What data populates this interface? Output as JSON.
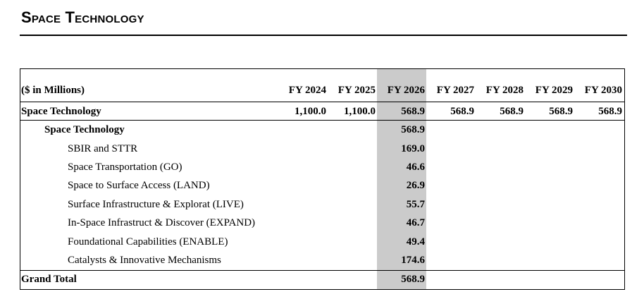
{
  "title": "Space Technology",
  "table": {
    "units_label": "($ in Millions)",
    "columns": [
      "FY 2024",
      "FY 2025",
      "FY 2026",
      "FY 2027",
      "FY 2028",
      "FY 2029",
      "FY 2030"
    ],
    "rows": [
      {
        "label": "Space Technology",
        "level": 0,
        "values": [
          "1,100.0",
          "1,100.0",
          "568.9",
          "568.9",
          "568.9",
          "568.9",
          "568.9"
        ]
      },
      {
        "label": "Space Technology",
        "level": 1,
        "values": [
          "",
          "",
          "568.9",
          "",
          "",
          "",
          ""
        ]
      },
      {
        "label": "SBIR and STTR",
        "level": 2,
        "values": [
          "",
          "",
          "169.0",
          "",
          "",
          "",
          ""
        ]
      },
      {
        "label": "Space Transportation (GO)",
        "level": 2,
        "values": [
          "",
          "",
          "46.6",
          "",
          "",
          "",
          ""
        ]
      },
      {
        "label": "Space to Surface Access (LAND)",
        "level": 2,
        "values": [
          "",
          "",
          "26.9",
          "",
          "",
          "",
          ""
        ]
      },
      {
        "label": "Surface Infrastructure & Explorat (LIVE)",
        "level": 2,
        "values": [
          "",
          "",
          "55.7",
          "",
          "",
          "",
          ""
        ]
      },
      {
        "label": "In-Space Infrastruct & Discover (EXPAND)",
        "level": 2,
        "values": [
          "",
          "",
          "46.7",
          "",
          "",
          "",
          ""
        ]
      },
      {
        "label": "Foundational Capabilities (ENABLE)",
        "level": 2,
        "values": [
          "",
          "",
          "49.4",
          "",
          "",
          "",
          ""
        ]
      },
      {
        "label": "Catalysts & Innovative Mechanisms",
        "level": 2,
        "values": [
          "",
          "",
          "174.6",
          "",
          "",
          "",
          ""
        ]
      }
    ],
    "grand_total": {
      "label": "Grand Total",
      "values": [
        "",
        "",
        "568.9",
        "",
        "",
        "",
        ""
      ]
    }
  }
}
